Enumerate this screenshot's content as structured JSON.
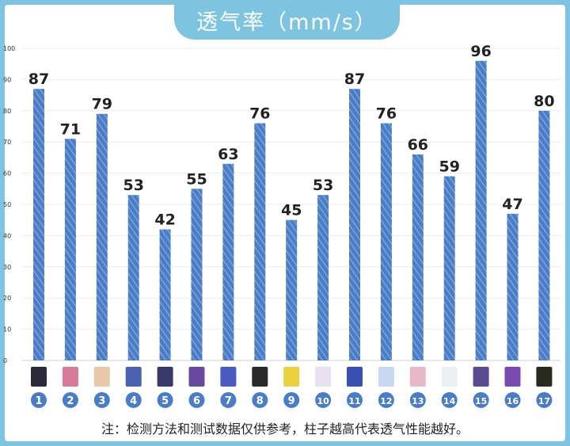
{
  "header": {
    "title": "透气率（mm/s）"
  },
  "chart_data": {
    "type": "bar",
    "title": "透气率（mm/s）",
    "categories": [
      "1",
      "2",
      "3",
      "4",
      "5",
      "6",
      "7",
      "8",
      "9",
      "10",
      "11",
      "12",
      "13",
      "14",
      "15",
      "16",
      "17"
    ],
    "values": [
      87,
      71,
      79,
      53,
      42,
      55,
      63,
      76,
      45,
      53,
      87,
      76,
      66,
      59,
      96,
      47,
      80
    ],
    "ylim": [
      0,
      100
    ],
    "yticks": [
      0,
      10,
      20,
      30,
      40,
      50,
      60,
      70,
      80,
      90,
      100
    ],
    "grid": true,
    "colors": {
      "bar": "#4a7dc6",
      "stripe": "#7aa3dc",
      "badge": "#4a7dc6",
      "frame": "#7ec4e0"
    }
  },
  "footer": {
    "note": "注：检测方法和测试数据仅供参考，柱子越高代表透气性能越好。"
  }
}
